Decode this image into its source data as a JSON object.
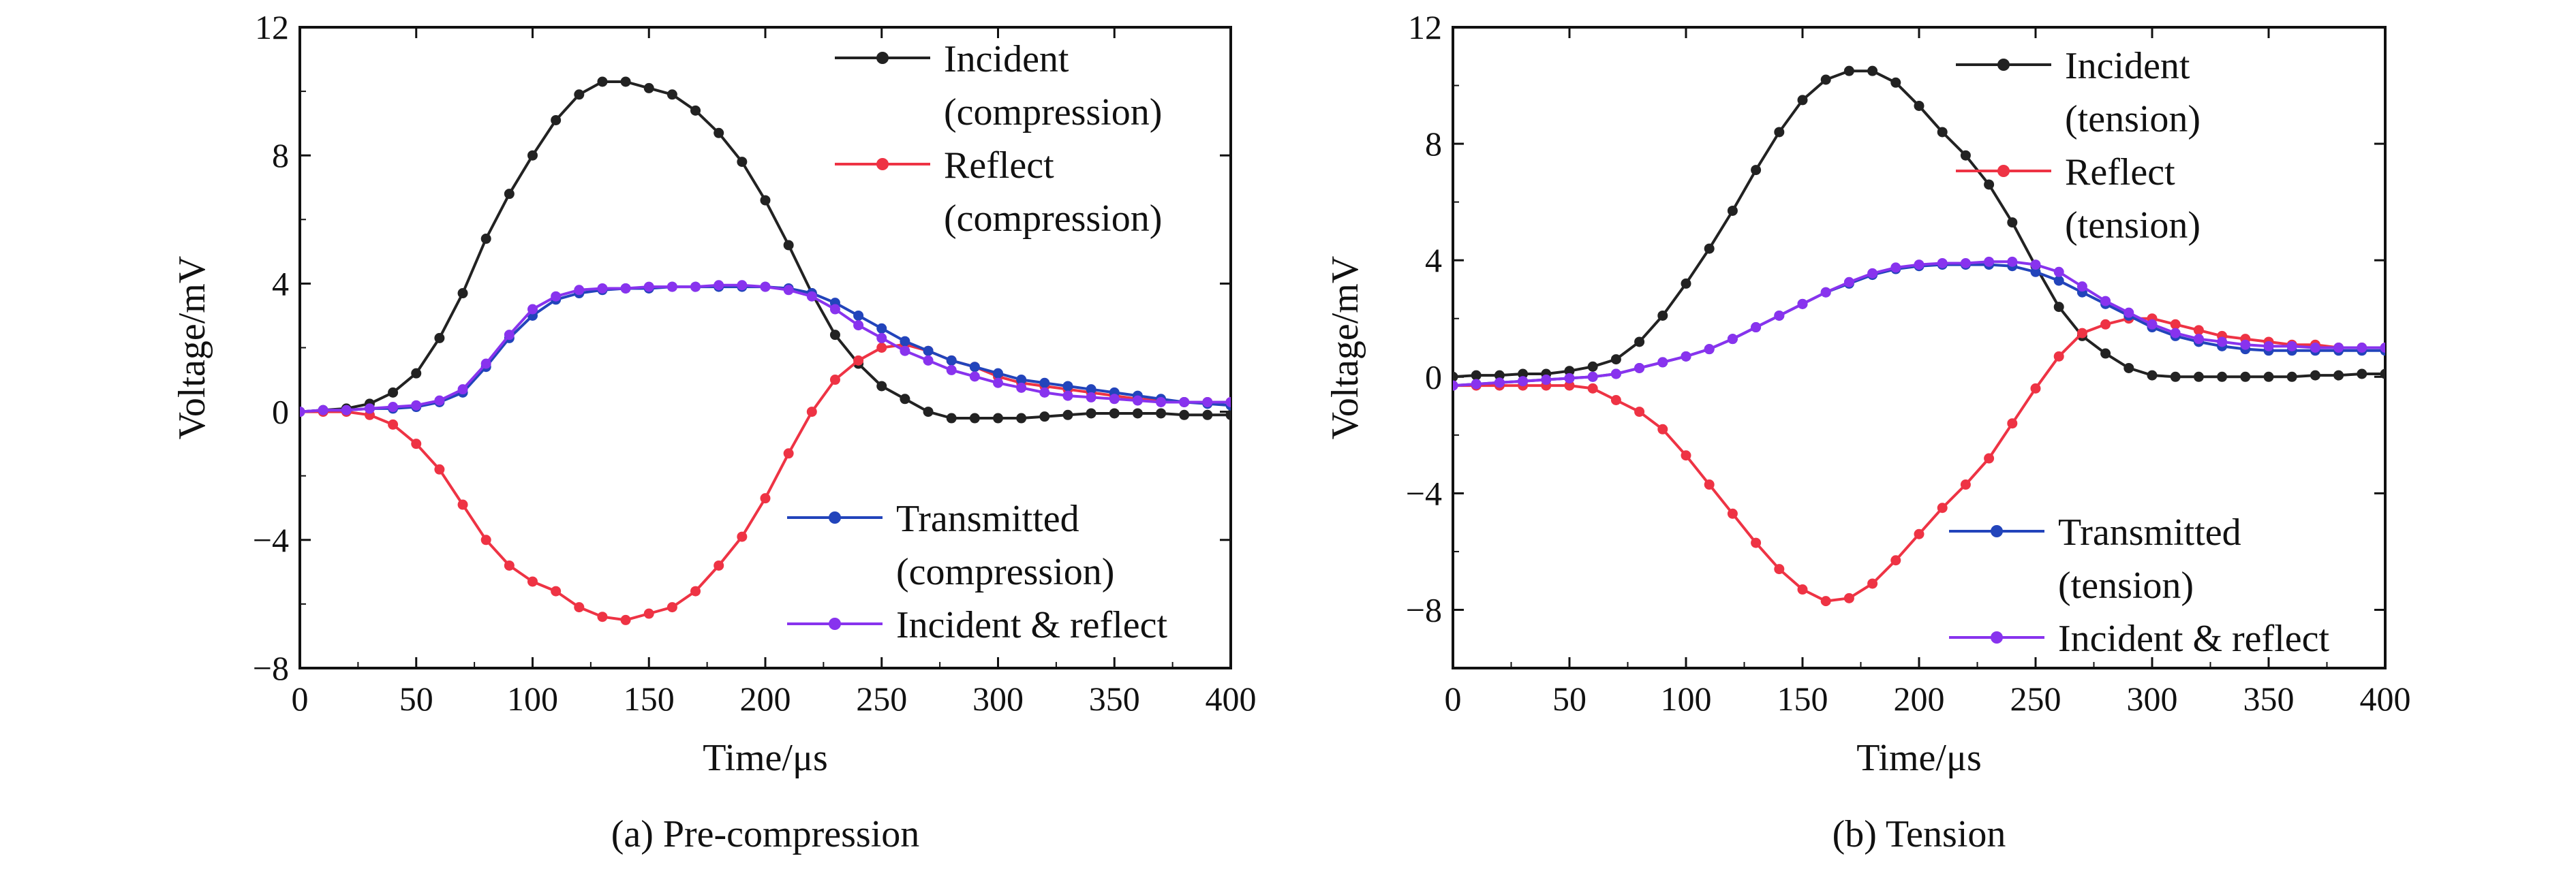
{
  "colors": {
    "incident": "#222222",
    "reflect": "#ee3344",
    "transmitted": "#2244bb",
    "incident_reflect": "#8833ee",
    "axis": "#111111"
  },
  "chart_data": [
    {
      "type": "line",
      "caption": "(a) Pre-compression",
      "xlabel": "Time/μs",
      "ylabel": "Voltage/mV",
      "xlim": [
        0,
        400
      ],
      "ylim": [
        -8,
        12
      ],
      "xticks": [
        0,
        50,
        100,
        150,
        200,
        250,
        300,
        350,
        400
      ],
      "yticks": [
        -8,
        -4,
        0,
        4,
        8,
        12
      ],
      "ytick_labels": [
        "−8",
        "−4",
        "0",
        "4",
        "8",
        "12"
      ],
      "grid": false,
      "legend_upper": "top-right",
      "legend_lower": "bottom-right",
      "x": [
        0,
        10,
        20,
        30,
        40,
        50,
        60,
        70,
        80,
        90,
        100,
        110,
        120,
        130,
        140,
        150,
        160,
        170,
        180,
        190,
        200,
        210,
        220,
        230,
        240,
        250,
        260,
        270,
        280,
        290,
        300,
        310,
        320,
        330,
        340,
        350,
        360,
        370,
        380,
        390,
        400
      ],
      "series": [
        {
          "key": "incident",
          "legend_lines": [
            "Incident",
            "(compression)"
          ],
          "legend_group": "upper",
          "values": [
            0,
            0.05,
            0.1,
            0.25,
            0.6,
            1.2,
            2.3,
            3.7,
            5.4,
            6.8,
            8.0,
            9.1,
            9.9,
            10.3,
            10.3,
            10.1,
            9.9,
            9.4,
            8.7,
            7.8,
            6.6,
            5.2,
            3.7,
            2.4,
            1.5,
            0.8,
            0.4,
            0.0,
            -0.2,
            -0.2,
            -0.2,
            -0.2,
            -0.15,
            -0.1,
            -0.05,
            -0.05,
            -0.05,
            -0.05,
            -0.1,
            -0.1,
            -0.1
          ]
        },
        {
          "key": "reflect",
          "legend_lines": [
            "Reflect",
            "(compression)"
          ],
          "legend_group": "upper",
          "values": [
            0,
            0.0,
            0.0,
            -0.1,
            -0.4,
            -1.0,
            -1.8,
            -2.9,
            -4.0,
            -4.8,
            -5.3,
            -5.6,
            -6.1,
            -6.4,
            -6.5,
            -6.3,
            -6.1,
            -5.6,
            -4.8,
            -3.9,
            -2.7,
            -1.3,
            0.0,
            1.0,
            1.6,
            2.0,
            2.1,
            1.9,
            1.6,
            1.4,
            1.1,
            0.9,
            0.8,
            0.7,
            0.6,
            0.5,
            0.4,
            0.35,
            0.3,
            0.3,
            0.3
          ]
        },
        {
          "key": "transmitted",
          "legend_lines": [
            "Transmitted",
            "(compression)"
          ],
          "legend_group": "lower",
          "values": [
            0,
            0.05,
            0.05,
            0.1,
            0.1,
            0.15,
            0.3,
            0.6,
            1.4,
            2.3,
            3.0,
            3.5,
            3.7,
            3.8,
            3.85,
            3.85,
            3.9,
            3.9,
            3.9,
            3.9,
            3.9,
            3.85,
            3.7,
            3.4,
            3.0,
            2.6,
            2.2,
            1.9,
            1.6,
            1.4,
            1.2,
            1.0,
            0.9,
            0.8,
            0.7,
            0.6,
            0.5,
            0.4,
            0.3,
            0.25,
            0.2
          ]
        },
        {
          "key": "incident_reflect",
          "legend_lines": [
            "Incident & reflect"
          ],
          "legend_group": "lower",
          "values": [
            0,
            0.05,
            0.05,
            0.1,
            0.15,
            0.2,
            0.35,
            0.7,
            1.5,
            2.4,
            3.2,
            3.6,
            3.8,
            3.85,
            3.85,
            3.9,
            3.9,
            3.9,
            3.95,
            3.95,
            3.9,
            3.8,
            3.6,
            3.2,
            2.7,
            2.3,
            1.9,
            1.6,
            1.3,
            1.1,
            0.9,
            0.75,
            0.6,
            0.5,
            0.45,
            0.4,
            0.35,
            0.3,
            0.3,
            0.3,
            0.3
          ]
        }
      ]
    },
    {
      "type": "line",
      "caption": "(b) Tension",
      "xlabel": "Time/μs",
      "ylabel": "Voltage/mV",
      "xlim": [
        0,
        400
      ],
      "ylim": [
        -10,
        12
      ],
      "xticks": [
        0,
        50,
        100,
        150,
        200,
        250,
        300,
        350,
        400
      ],
      "yticks": [
        -8,
        -4,
        0,
        4,
        8,
        12
      ],
      "ytick_labels": [
        "−8",
        "−4",
        "0",
        "4",
        "8",
        "12"
      ],
      "grid": false,
      "legend_upper": "top-right",
      "legend_lower": "bottom-right",
      "x": [
        0,
        10,
        20,
        30,
        40,
        50,
        60,
        70,
        80,
        90,
        100,
        110,
        120,
        130,
        140,
        150,
        160,
        170,
        180,
        190,
        200,
        210,
        220,
        230,
        240,
        250,
        260,
        270,
        280,
        290,
        300,
        310,
        320,
        330,
        340,
        350,
        360,
        370,
        380,
        390,
        400
      ],
      "series": [
        {
          "key": "incident",
          "legend_lines": [
            "Incident",
            "(tension)"
          ],
          "legend_group": "upper",
          "values": [
            0,
            0.05,
            0.05,
            0.1,
            0.1,
            0.2,
            0.35,
            0.6,
            1.2,
            2.1,
            3.2,
            4.4,
            5.7,
            7.1,
            8.4,
            9.5,
            10.2,
            10.5,
            10.5,
            10.1,
            9.3,
            8.4,
            7.6,
            6.6,
            5.3,
            3.8,
            2.4,
            1.4,
            0.8,
            0.3,
            0.05,
            0.0,
            0.0,
            0.0,
            0.0,
            0.0,
            0.0,
            0.05,
            0.05,
            0.1,
            0.1
          ]
        },
        {
          "key": "reflect",
          "legend_lines": [
            "Reflect",
            "(tension)"
          ],
          "legend_group": "upper",
          "values": [
            -0.3,
            -0.3,
            -0.3,
            -0.3,
            -0.3,
            -0.3,
            -0.4,
            -0.8,
            -1.2,
            -1.8,
            -2.7,
            -3.7,
            -4.7,
            -5.7,
            -6.6,
            -7.3,
            -7.7,
            -7.6,
            -7.1,
            -6.3,
            -5.4,
            -4.5,
            -3.7,
            -2.8,
            -1.6,
            -0.4,
            0.7,
            1.5,
            1.8,
            2.0,
            2.0,
            1.8,
            1.6,
            1.4,
            1.3,
            1.2,
            1.1,
            1.1,
            1.0,
            1.0,
            1.0
          ]
        },
        {
          "key": "transmitted",
          "legend_lines": [
            "Transmitted",
            "(tension)"
          ],
          "legend_group": "lower",
          "values": [
            -0.3,
            -0.25,
            -0.2,
            -0.15,
            -0.1,
            -0.05,
            0.0,
            0.1,
            0.3,
            0.5,
            0.7,
            0.95,
            1.3,
            1.7,
            2.1,
            2.5,
            2.9,
            3.2,
            3.5,
            3.7,
            3.8,
            3.85,
            3.85,
            3.85,
            3.8,
            3.6,
            3.3,
            2.9,
            2.5,
            2.1,
            1.7,
            1.4,
            1.2,
            1.05,
            0.95,
            0.9,
            0.9,
            0.9,
            0.9,
            0.9,
            0.9
          ]
        },
        {
          "key": "incident_reflect",
          "legend_lines": [
            "Incident & reflect"
          ],
          "legend_group": "lower",
          "values": [
            -0.3,
            -0.25,
            -0.2,
            -0.15,
            -0.1,
            -0.05,
            0.0,
            0.1,
            0.3,
            0.5,
            0.7,
            0.95,
            1.3,
            1.7,
            2.1,
            2.5,
            2.9,
            3.25,
            3.55,
            3.75,
            3.85,
            3.9,
            3.9,
            3.95,
            3.95,
            3.85,
            3.6,
            3.1,
            2.6,
            2.2,
            1.8,
            1.5,
            1.3,
            1.2,
            1.1,
            1.05,
            1.05,
            1.0,
            1.0,
            1.0,
            1.0
          ]
        }
      ]
    }
  ]
}
